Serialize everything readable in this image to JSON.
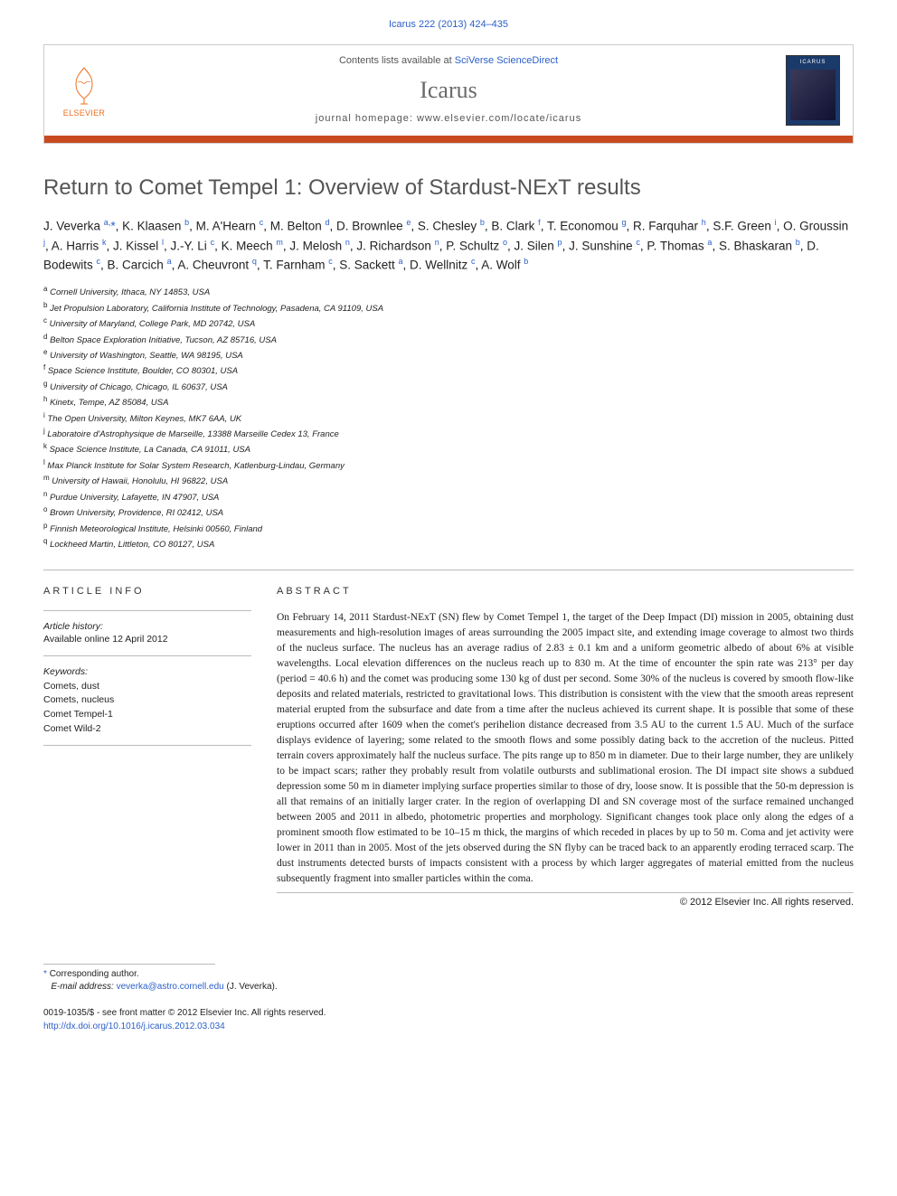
{
  "citation_top": "Icarus 222 (2013) 424–435",
  "header": {
    "contents_prefix": "Contents lists available at ",
    "contents_link": "SciVerse ScienceDirect",
    "journal_name": "Icarus",
    "homepage_prefix": "journal homepage: ",
    "homepage_url": "www.elsevier.com/locate/icarus",
    "publisher": "ELSEVIER",
    "cover_label": "ICARUS"
  },
  "colors": {
    "accent_bar": "#ca4a1f",
    "link": "#2b5fc7",
    "elsevier_orange": "#ed6f1e",
    "grey_text": "#555555",
    "border": "#bbbbbb",
    "cover_bg": "#1a3a6a"
  },
  "article_title": "Return to Comet Tempel 1: Overview of Stardust-NExT results",
  "authors_html": "J. Veverka <sup>a,</sup><span class='star'>*</span>, K. Klaasen <sup>b</sup>, M. A'Hearn <sup>c</sup>, M. Belton <sup>d</sup>, D. Brownlee <sup>e</sup>, S. Chesley <sup>b</sup>, B. Clark <sup>f</sup>, T. Economou <sup>g</sup>, R. Farquhar <sup>h</sup>, S.F. Green <sup>i</sup>, O. Groussin <sup>j</sup>, A. Harris <sup>k</sup>, J. Kissel <sup>l</sup>, J.-Y. Li <sup>c</sup>, K. Meech <sup>m</sup>, J. Melosh <sup>n</sup>, J. Richardson <sup>n</sup>, P. Schultz <sup>o</sup>, J. Silen <sup>p</sup>, J. Sunshine <sup>c</sup>, P. Thomas <sup>a</sup>, S. Bhaskaran <sup>b</sup>, D. Bodewits <sup>c</sup>, B. Carcich <sup>a</sup>, A. Cheuvront <sup>q</sup>, T. Farnham <sup>c</sup>, S. Sackett <sup>a</sup>, D. Wellnitz <sup>c</sup>, A. Wolf <sup>b</sup>",
  "affiliations": [
    {
      "sup": "a",
      "text": "Cornell University, Ithaca, NY 14853, USA"
    },
    {
      "sup": "b",
      "text": "Jet Propulsion Laboratory, California Institute of Technology, Pasadena, CA 91109, USA"
    },
    {
      "sup": "c",
      "text": "University of Maryland, College Park, MD 20742, USA"
    },
    {
      "sup": "d",
      "text": "Belton Space Exploration Initiative, Tucson, AZ 85716, USA"
    },
    {
      "sup": "e",
      "text": "University of Washington, Seattle, WA 98195, USA"
    },
    {
      "sup": "f",
      "text": "Space Science Institute, Boulder, CO 80301, USA"
    },
    {
      "sup": "g",
      "text": "University of Chicago, Chicago, IL 60637, USA"
    },
    {
      "sup": "h",
      "text": "Kinetx, Tempe, AZ 85084, USA"
    },
    {
      "sup": "i",
      "text": "The Open University, Milton Keynes, MK7 6AA, UK"
    },
    {
      "sup": "j",
      "text": "Laboratoire d'Astrophysique de Marseille, 13388 Marseille Cedex 13, France"
    },
    {
      "sup": "k",
      "text": "Space Science Institute, La Canada, CA 91011, USA"
    },
    {
      "sup": "l",
      "text": "Max Planck Institute for Solar System Research, Katlenburg-Lindau, Germany"
    },
    {
      "sup": "m",
      "text": "University of Hawaii, Honolulu, HI 96822, USA"
    },
    {
      "sup": "n",
      "text": "Purdue University, Lafayette, IN 47907, USA"
    },
    {
      "sup": "o",
      "text": "Brown University, Providence, RI 02412, USA"
    },
    {
      "sup": "p",
      "text": "Finnish Meteorological Institute, Helsinki 00560, Finland"
    },
    {
      "sup": "q",
      "text": "Lockheed Martin, Littleton, CO 80127, USA"
    }
  ],
  "article_info": {
    "heading": "ARTICLE INFO",
    "history_label": "Article history:",
    "history_text": "Available online 12 April 2012",
    "keywords_label": "Keywords:",
    "keywords": [
      "Comets, dust",
      "Comets, nucleus",
      "Comet Tempel-1",
      "Comet Wild-2"
    ]
  },
  "abstract": {
    "heading": "ABSTRACT",
    "text": "On February 14, 2011 Stardust-NExT (SN) flew by Comet Tempel 1, the target of the Deep Impact (DI) mission in 2005, obtaining dust measurements and high-resolution images of areas surrounding the 2005 impact site, and extending image coverage to almost two thirds of the nucleus surface. The nucleus has an average radius of 2.83 ± 0.1 km and a uniform geometric albedo of about 6% at visible wavelengths. Local elevation differences on the nucleus reach up to 830 m. At the time of encounter the spin rate was 213° per day (period = 40.6 h) and the comet was producing some 130 kg of dust per second. Some 30% of the nucleus is covered by smooth flow-like deposits and related materials, restricted to gravitational lows. This distribution is consistent with the view that the smooth areas represent material erupted from the subsurface and date from a time after the nucleus achieved its current shape. It is possible that some of these eruptions occurred after 1609 when the comet's perihelion distance decreased from 3.5 AU to the current 1.5 AU. Much of the surface displays evidence of layering; some related to the smooth flows and some possibly dating back to the accretion of the nucleus. Pitted terrain covers approximately half the nucleus surface. The pits range up to 850 m in diameter. Due to their large number, they are unlikely to be impact scars; rather they probably result from volatile outbursts and sublimational erosion. The DI impact site shows a subdued depression some 50 m in diameter implying surface properties similar to those of dry, loose snow. It is possible that the 50-m depression is all that remains of an initially larger crater. In the region of overlapping DI and SN coverage most of the surface remained unchanged between 2005 and 2011 in albedo, photometric properties and morphology. Significant changes took place only along the edges of a prominent smooth flow estimated to be 10–15 m thick, the margins of which receded in places by up to 50 m. Coma and jet activity were lower in 2011 than in 2005. Most of the jets observed during the SN flyby can be traced back to an apparently eroding terraced scarp. The dust instruments detected bursts of impacts consistent with a process by which larger aggregates of material emitted from the nucleus subsequently fragment into smaller particles within the coma.",
    "copyright": "© 2012 Elsevier Inc. All rights reserved."
  },
  "corresponding": {
    "label": "Corresponding author.",
    "email_label": "E-mail address:",
    "email": "veverka@astro.cornell.edu",
    "email_person": "(J. Veverka)."
  },
  "bottom": {
    "issn_line": "0019-1035/$ - see front matter © 2012 Elsevier Inc. All rights reserved.",
    "doi_url": "http://dx.doi.org/10.1016/j.icarus.2012.03.034"
  }
}
